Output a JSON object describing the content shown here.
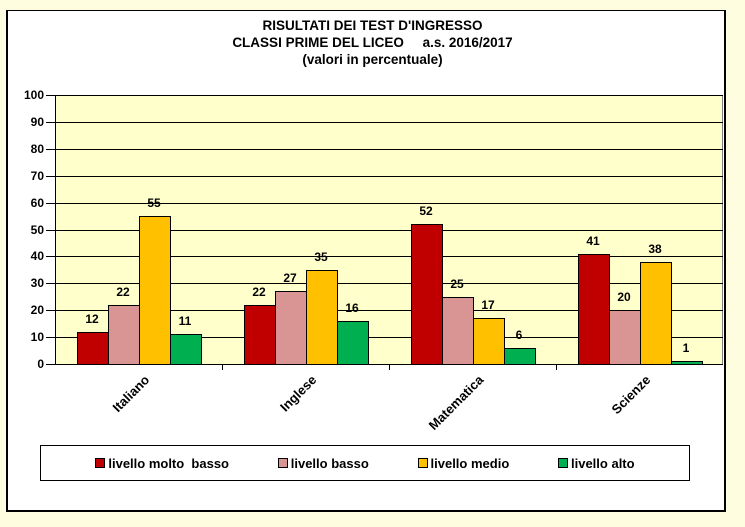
{
  "chart_data": {
    "type": "bar",
    "title": [
      "RISULTATI DEI TEST D'INGRESSO",
      "CLASSI PRIME DEL LICEO     a.s. 2016/2017",
      "(valori in percentuale)"
    ],
    "categories": [
      "Italiano",
      "Inglese",
      "Matematica",
      "Scienze"
    ],
    "series": [
      {
        "name": "livello molto  basso",
        "color": "#c00000",
        "values": [
          12,
          22,
          52,
          41
        ]
      },
      {
        "name": "livello basso",
        "color": "#d99594",
        "values": [
          22,
          27,
          25,
          20
        ]
      },
      {
        "name": "livello medio",
        "color": "#ffc000",
        "values": [
          55,
          35,
          17,
          38
        ]
      },
      {
        "name": "livello alto",
        "color": "#00b050",
        "values": [
          11,
          16,
          6,
          1
        ]
      }
    ],
    "xlabel": "",
    "ylabel": "",
    "ylim": [
      0,
      100
    ],
    "yticks": [
      0,
      10,
      20,
      30,
      40,
      50,
      60,
      70,
      80,
      90,
      100
    ],
    "grid": true,
    "legend_position": "bottom",
    "plot_background": "#ffffcc"
  }
}
